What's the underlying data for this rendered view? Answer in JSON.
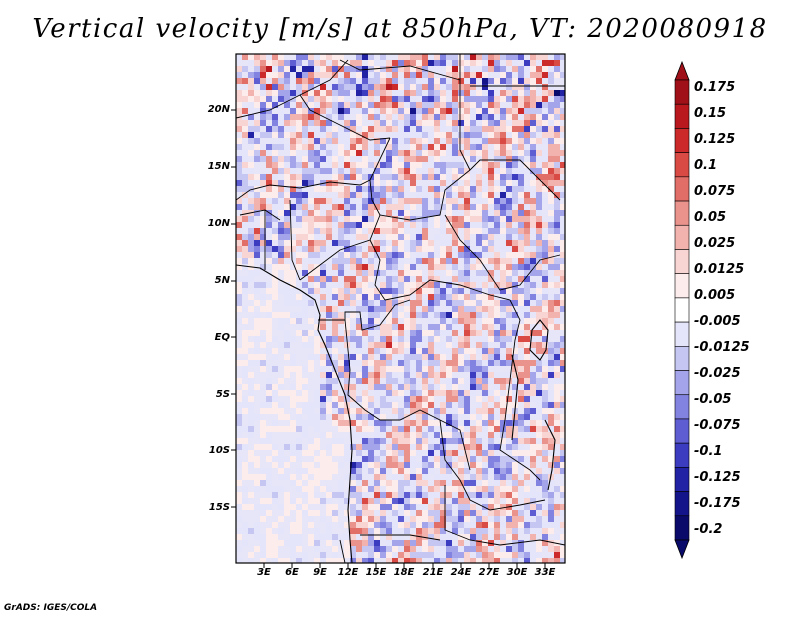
{
  "title": "Vertical velocity [m/s] at 850hPa, VT: 2020080918",
  "map": {
    "variable": "Vertical velocity",
    "units": "m/s",
    "level": "850hPa",
    "valid_time": "2020080918",
    "lat_labels": [
      "20N",
      "15N",
      "10N",
      "5N",
      "EQ",
      "5S",
      "10S",
      "15S"
    ],
    "lon_labels": [
      "3E",
      "6E",
      "9E",
      "12E",
      "15E",
      "18E",
      "21E",
      "24E",
      "27E",
      "30E",
      "33E"
    ]
  },
  "colorbar": {
    "labels": [
      "0.175",
      "0.15",
      "0.125",
      "0.1",
      "0.075",
      "0.05",
      "0.025",
      "0.0125",
      "0.005",
      "-0.005",
      "-0.0125",
      "-0.025",
      "-0.05",
      "-0.075",
      "-0.1",
      "-0.125",
      "-0.175",
      "-0.2"
    ],
    "colors": [
      "#a01018",
      "#b8181e",
      "#cc2a2a",
      "#da4a44",
      "#e26e68",
      "#ea928c",
      "#f2b2ae",
      "#f8d4d2",
      "#fcecec",
      "#ffffff",
      "#e4e4fa",
      "#c6c6f2",
      "#a4a4ea",
      "#8282e0",
      "#5e5ed2",
      "#3c3cc0",
      "#2222a4",
      "#14148a",
      "#0a0a6a"
    ]
  },
  "credit": "GrADS: IGES/COLA"
}
